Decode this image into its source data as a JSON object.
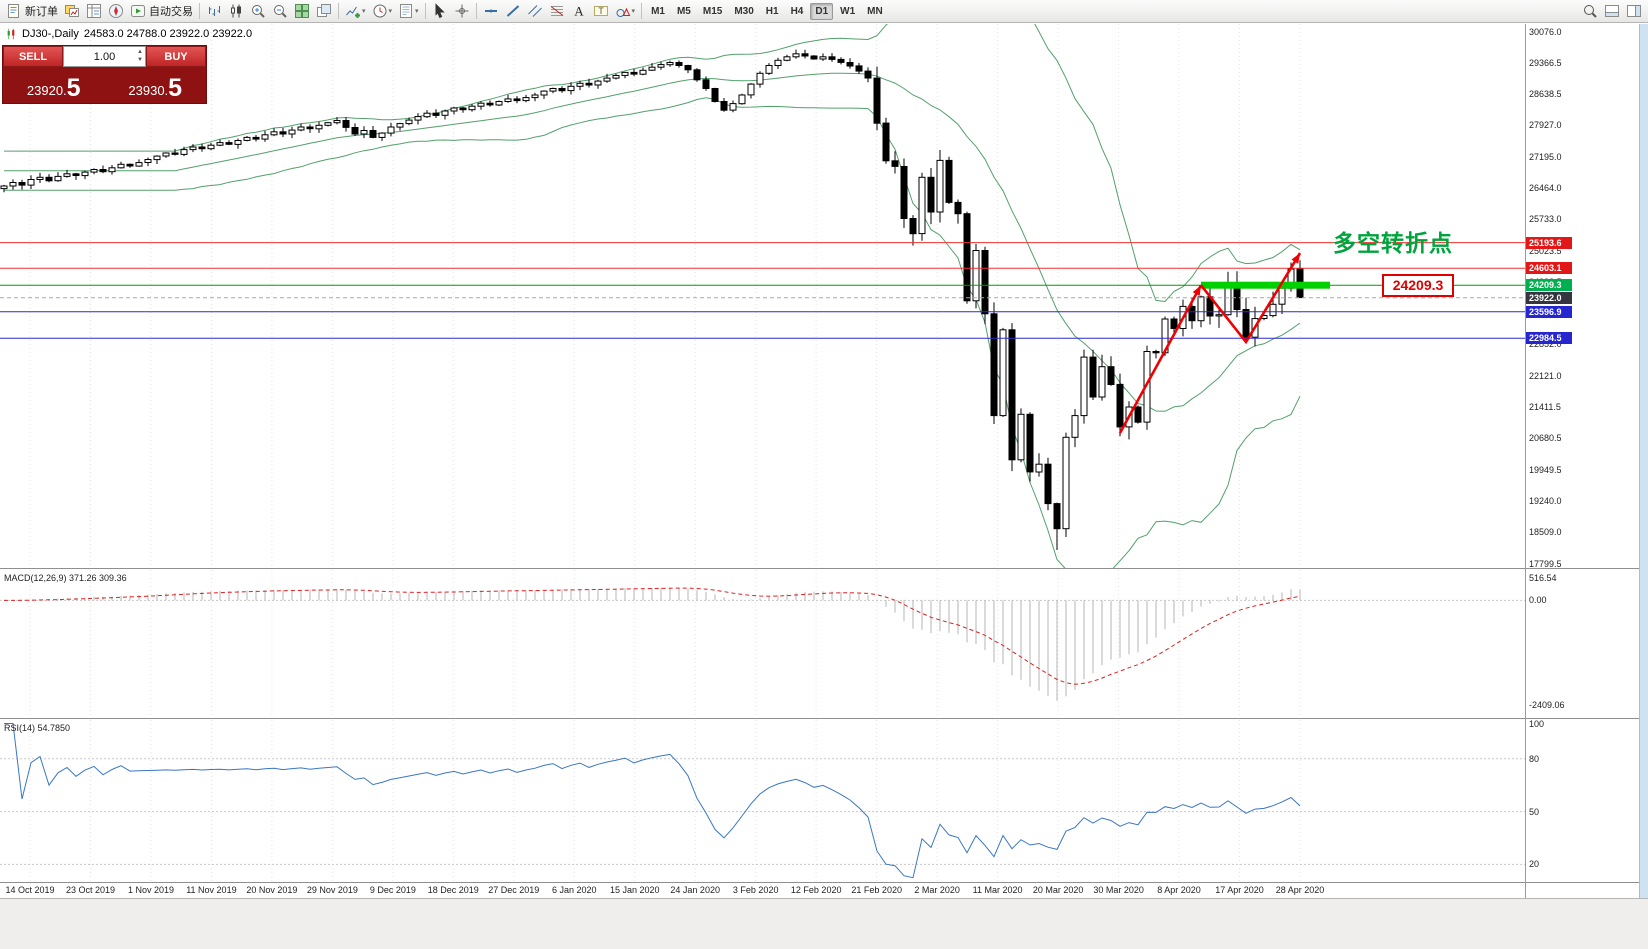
{
  "toolbar": {
    "items": [
      {
        "type": "button",
        "name": "new-order-button",
        "icon": "new-order-icon",
        "label": "新订单"
      },
      {
        "type": "icon",
        "name": "charts-button",
        "icon": "charts-icon"
      },
      {
        "type": "icon",
        "name": "market-watch-button",
        "icon": "market-watch-icon"
      },
      {
        "type": "icon",
        "name": "navigator-button",
        "icon": "navigator-icon"
      },
      {
        "type": "button",
        "name": "autotrading-button",
        "icon": "autotrading-icon",
        "label": "自动交易"
      },
      {
        "type": "sep"
      },
      {
        "type": "icon",
        "name": "bar-chart-button",
        "icon": "bar-chart-icon"
      },
      {
        "type": "icon",
        "name": "candlestick-chart-button",
        "icon": "candlestick-icon"
      },
      {
        "type": "icon",
        "name": "zoom-in-button",
        "icon": "zoom-in-icon"
      },
      {
        "type": "icon",
        "name": "zoom-out-button",
        "icon": "zoom-out-icon"
      },
      {
        "type": "icon",
        "name": "tile-windows-button",
        "icon": "tile-windows-icon"
      },
      {
        "type": "icon",
        "name": "arrange-windows-button",
        "icon": "arrange-windows-icon"
      },
      {
        "type": "sep"
      },
      {
        "type": "icon",
        "name": "indicators-button",
        "icon": "indicators-icon",
        "dropdown": true
      },
      {
        "type": "icon",
        "name": "periods-button",
        "icon": "clock-icon",
        "dropdown": true
      },
      {
        "type": "icon",
        "name": "templates-button",
        "icon": "template-icon",
        "dropdown": true
      },
      {
        "type": "sep"
      },
      {
        "type": "icon",
        "name": "cursor-button",
        "icon": "cursor-icon"
      },
      {
        "type": "icon",
        "name": "crosshair-button",
        "icon": "crosshair-icon"
      },
      {
        "type": "sep"
      },
      {
        "type": "icon",
        "name": "horizontal-line-button",
        "icon": "horizontal-line-icon"
      },
      {
        "type": "icon",
        "name": "trendline-button",
        "icon": "trendline-icon"
      },
      {
        "type": "icon",
        "name": "channel-button",
        "icon": "channel-icon"
      },
      {
        "type": "icon",
        "name": "fibonacci-button",
        "icon": "fibonacci-icon"
      },
      {
        "type": "icon",
        "name": "text-button",
        "icon": "text-icon"
      },
      {
        "type": "icon",
        "name": "text-label-button",
        "icon": "text-label-icon"
      },
      {
        "type": "icon",
        "name": "shapes-button",
        "icon": "shapes-icon",
        "dropdown": true
      },
      {
        "type": "sep"
      }
    ],
    "timeframes": [
      "M1",
      "M5",
      "M15",
      "M30",
      "H1",
      "H4",
      "D1",
      "W1",
      "MN"
    ],
    "active_timeframe": "D1",
    "right_items": [
      {
        "name": "search-button",
        "icon": "search-icon"
      },
      {
        "name": "toolbox-panel-button",
        "icon": "window-bottom-icon"
      },
      {
        "name": "side-panel-button",
        "icon": "window-panel-icon"
      }
    ]
  },
  "chart": {
    "title": "DJ30-,Daily",
    "ohlc": "24583.0 24788.0 23922.0 23922.0",
    "y_axis_labels": [
      "30076.0",
      "29366.5",
      "28638.5",
      "27927.0",
      "27195.0",
      "26464.0",
      "25733.0",
      "25023.5",
      "24292.5",
      "23582.0",
      "22852.0",
      "22121.0",
      "21411.5",
      "20680.5",
      "19949.5",
      "19240.0",
      "18509.0",
      "17799.5"
    ],
    "x_axis_labels": [
      "14 Oct 2019",
      "23 Oct 2019",
      "1 Nov 2019",
      "11 Nov 2019",
      "20 Nov 2019",
      "29 Nov 2019",
      "9 Dec 2019",
      "18 Dec 2019",
      "27 Dec 2019",
      "6 Jan 2020",
      "15 Jan 2020",
      "24 Jan 2020",
      "3 Feb 2020",
      "12 Feb 2020",
      "21 Feb 2020",
      "2 Mar 2020",
      "11 Mar 2020",
      "20 Mar 2020",
      "30 Mar 2020",
      "8 Apr 2020",
      "17 Apr 2020",
      "28 Apr 2020"
    ],
    "price_tags": [
      {
        "label": "25193.6",
        "value": 25193.6,
        "bg": "#e21717"
      },
      {
        "label": "24603.1",
        "value": 24603.1,
        "bg": "#e21717"
      },
      {
        "label": "24209.3",
        "value": 24209.3,
        "bg": "#00b050"
      },
      {
        "label": "23922.0",
        "value": 23922.0,
        "bg": "#35353f"
      },
      {
        "label": "23596.9",
        "value": 23596.9,
        "bg": "#2626cf"
      },
      {
        "label": "22984.5",
        "value": 22984.5,
        "bg": "#2626cf"
      }
    ]
  },
  "trade_panel": {
    "sell_label": "SELL",
    "buy_label": "BUY",
    "volume": "1.00",
    "sell_price": "23920.5",
    "buy_price": "23930.5"
  },
  "annotations": {
    "turning_point_text": "多空转折点",
    "support_price_label": "24209.3"
  },
  "macd": {
    "header": "MACD(12,26,9) 371.26 309.36",
    "scale": [
      {
        "label": "516.54",
        "value": 516.54
      },
      {
        "label": "0.00",
        "value": 0
      },
      {
        "label": "-2409.06",
        "value": -2409.06
      }
    ]
  },
  "rsi": {
    "header": "RSI(14) 54.7850",
    "scale": [
      {
        "label": "100",
        "value": 100
      },
      {
        "label": "80",
        "value": 80
      },
      {
        "label": "50",
        "value": 50
      },
      {
        "label": "20",
        "value": 20
      }
    ]
  },
  "colors": {
    "bull_candle": "#ffffff",
    "bear_candle": "#000000",
    "bollinger": "#53a06b",
    "grid": "#e4e4e4",
    "macd_histogram": "#b4b4b4",
    "macd_signal": "#e02020",
    "rsi_line": "#3a76c4",
    "red_level": "#f03030",
    "blue_level": "#2a2ad0",
    "green_level": "#00a000",
    "support_bar": "#00d000",
    "zigzag": "#f00000"
  },
  "chart_data": {
    "type": "candlestick",
    "symbol": "DJ30-",
    "timeframe": "Daily",
    "title": "DJ30-,Daily",
    "current_ohlc": {
      "open": 24583.0,
      "high": 24788.0,
      "low": 23922.0,
      "close": 23922.0
    },
    "y_range": [
      17799.5,
      30076.0
    ],
    "x_range_dates": [
      "9 Oct 2019",
      "29 Apr 2020"
    ],
    "closes": [
      26500,
      26580,
      26520,
      26650,
      26700,
      26620,
      26720,
      26780,
      26740,
      26820,
      26880,
      26830,
      26920,
      27000,
      26960,
      27040,
      27110,
      27190,
      27260,
      27230,
      27340,
      27400,
      27360,
      27440,
      27500,
      27460,
      27550,
      27620,
      27580,
      27680,
      27750,
      27700,
      27790,
      27860,
      27820,
      27900,
      27960,
      28010,
      27850,
      27700,
      27780,
      27620,
      27720,
      27860,
      27940,
      28020,
      28100,
      28180,
      28130,
      28230,
      28300,
      28260,
      28340,
      28410,
      28370,
      28450,
      28510,
      28470,
      28540,
      28600,
      28690,
      28750,
      28700,
      28800,
      28870,
      28830,
      28920,
      28990,
      29050,
      29120,
      29080,
      29170,
      29240,
      29300,
      29350,
      29280,
      29180,
      28950,
      28750,
      28450,
      28250,
      28400,
      28600,
      28850,
      29100,
      29280,
      29400,
      29480,
      29550,
      29500,
      29430,
      29480,
      29420,
      29350,
      29270,
      29150,
      28990,
      27950,
      27080,
      26950,
      25750,
      25400,
      26700,
      25900,
      27090,
      26120,
      25860,
      23850,
      25010,
      23550,
      21200,
      23180,
      20180,
      21230,
      19900,
      20080,
      19170,
      18590,
      20700,
      21200,
      22550,
      21630,
      22330,
      21920,
      20940,
      21400,
      21050,
      22680,
      22650,
      23430,
      23210,
      23720,
      23390,
      23940,
      23500,
      23530,
      24240,
      23650,
      23010,
      23440,
      23510,
      23770,
      24140,
      24583,
      23922
    ],
    "overlays": {
      "bollinger_bands": {
        "period": 20,
        "deviation": 2
      }
    },
    "indicators": [
      {
        "name": "MACD",
        "params": "12,26,9",
        "current_values": [
          371.26,
          309.36
        ],
        "scale": [
          516.54,
          0,
          -2409.06
        ]
      },
      {
        "name": "RSI",
        "params": "14",
        "current_value": 54.785,
        "scale": [
          100,
          80,
          50,
          20
        ]
      }
    ],
    "horizontal_levels": [
      {
        "price": 25193.6,
        "hex": "#f03030",
        "dashed": false
      },
      {
        "price": 24603.1,
        "hex": "#f03030",
        "dashed": false
      },
      {
        "price": 24209.3,
        "hex": "#00a000",
        "dashed": false
      },
      {
        "price": 23922.0,
        "hex": "#aaaaaa",
        "dashed": true
      },
      {
        "price": 23596.9,
        "hex": "#2a2ad0",
        "dashed": false
      },
      {
        "price": 22984.5,
        "hex": "#2a2ad0",
        "dashed": false
      }
    ],
    "support_bar": {
      "price": 24209.3,
      "from_index": 133,
      "to_x": 1330
    },
    "zigzag_annotation": [
      {
        "index": 124,
        "price": 20800
      },
      {
        "index": 133,
        "price": 24209
      },
      {
        "index": 138,
        "price": 22900
      },
      {
        "index": 144,
        "price": 24950
      }
    ]
  }
}
